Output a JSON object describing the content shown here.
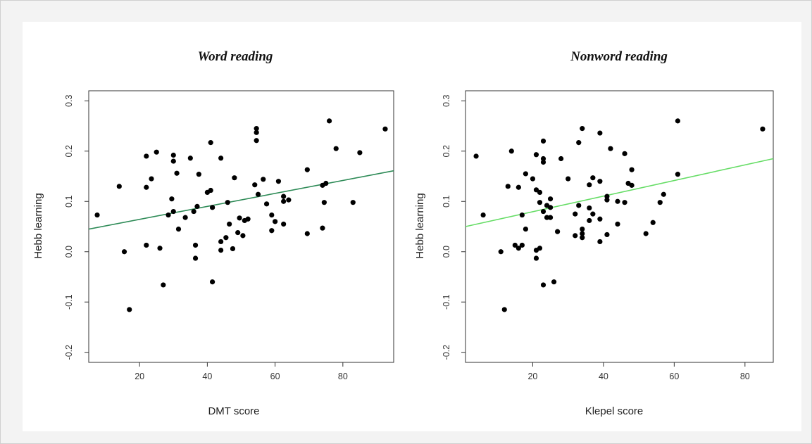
{
  "chart_data": [
    {
      "type": "scatter",
      "title": "Word reading",
      "xlabel": "DMT score",
      "ylabel": "Hebb learning",
      "xlim": [
        5,
        95
      ],
      "ylim": [
        -0.22,
        0.32
      ],
      "xticks": [
        20,
        40,
        60,
        80
      ],
      "yticks": [
        -0.2,
        -0.1,
        0.0,
        0.1,
        0.2,
        0.3
      ],
      "ytick_labels": [
        "-0.2",
        "-0.1",
        "0.0",
        "0.1",
        "0.2",
        "0.3"
      ],
      "grid": false,
      "fit_line": {
        "x": [
          5,
          95
        ],
        "y": [
          0.045,
          0.161
        ],
        "color": "#2e8b57"
      },
      "points": [
        [
          7.5,
          0.073
        ],
        [
          14,
          0.13
        ],
        [
          15.5,
          0.0
        ],
        [
          17,
          -0.115
        ],
        [
          22,
          0.19
        ],
        [
          22,
          0.128
        ],
        [
          22,
          0.013
        ],
        [
          23.5,
          0.145
        ],
        [
          25,
          0.198
        ],
        [
          26,
          0.007
        ],
        [
          27,
          -0.066
        ],
        [
          28.5,
          0.073
        ],
        [
          29.5,
          0.105
        ],
        [
          30,
          0.192
        ],
        [
          30,
          0.18
        ],
        [
          30,
          0.08
        ],
        [
          31,
          0.156
        ],
        [
          31.5,
          0.045
        ],
        [
          33.5,
          0.068
        ],
        [
          35,
          0.186
        ],
        [
          36,
          0.08
        ],
        [
          36.5,
          0.013
        ],
        [
          36.5,
          -0.013
        ],
        [
          37,
          0.09
        ],
        [
          37.5,
          0.154
        ],
        [
          40,
          0.118
        ],
        [
          41,
          0.217
        ],
        [
          41,
          0.122
        ],
        [
          41.5,
          0.088
        ],
        [
          41.5,
          -0.06
        ],
        [
          44,
          0.186
        ],
        [
          44,
          0.02
        ],
        [
          44,
          0.003
        ],
        [
          45.5,
          0.028
        ],
        [
          46,
          0.098
        ],
        [
          46.5,
          0.055
        ],
        [
          47.5,
          0.006
        ],
        [
          48,
          0.147
        ],
        [
          49,
          0.038
        ],
        [
          49.5,
          0.067
        ],
        [
          50.5,
          0.032
        ],
        [
          51,
          0.062
        ],
        [
          52,
          0.065
        ],
        [
          54,
          0.133
        ],
        [
          54.5,
          0.245
        ],
        [
          54.5,
          0.237
        ],
        [
          54.5,
          0.221
        ],
        [
          55,
          0.114
        ],
        [
          56.5,
          0.144
        ],
        [
          57.5,
          0.095
        ],
        [
          59,
          0.073
        ],
        [
          59,
          0.042
        ],
        [
          60,
          0.06
        ],
        [
          61,
          0.14
        ],
        [
          62.5,
          0.1
        ],
        [
          62.5,
          0.11
        ],
        [
          62.5,
          0.055
        ],
        [
          64,
          0.103
        ],
        [
          69.5,
          0.163
        ],
        [
          69.5,
          0.036
        ],
        [
          74,
          0.132
        ],
        [
          74,
          0.047
        ],
        [
          74.5,
          0.098
        ],
        [
          75,
          0.136
        ],
        [
          76,
          0.26
        ],
        [
          78,
          0.205
        ],
        [
          83,
          0.098
        ],
        [
          85,
          0.197
        ],
        [
          92.5,
          0.244
        ]
      ]
    },
    {
      "type": "scatter",
      "title": "Nonword reading",
      "xlabel": "Klepel score",
      "ylabel": "Hebb learning",
      "xlim": [
        1,
        88
      ],
      "ylim": [
        -0.22,
        0.32
      ],
      "xticks": [
        20,
        40,
        60,
        80
      ],
      "yticks": [
        -0.2,
        -0.1,
        0.0,
        0.1,
        0.2,
        0.3
      ],
      "ytick_labels": [
        "-0.2",
        "-0.1",
        "0.0",
        "0.1",
        "0.2",
        "0.3"
      ],
      "grid": false,
      "fit_line": {
        "x": [
          1,
          88
        ],
        "y": [
          0.05,
          0.185
        ],
        "color": "#66dd66"
      },
      "points": [
        [
          4,
          0.19
        ],
        [
          6,
          0.073
        ],
        [
          11,
          0.0
        ],
        [
          12,
          -0.115
        ],
        [
          13,
          0.13
        ],
        [
          14,
          0.2
        ],
        [
          15,
          0.013
        ],
        [
          16,
          0.128
        ],
        [
          16,
          0.007
        ],
        [
          17,
          0.073
        ],
        [
          17,
          0.013
        ],
        [
          18,
          0.155
        ],
        [
          18,
          0.045
        ],
        [
          20,
          0.145
        ],
        [
          21,
          0.193
        ],
        [
          21,
          0.123
        ],
        [
          21,
          0.003
        ],
        [
          21,
          -0.013
        ],
        [
          22,
          0.118
        ],
        [
          22,
          0.098
        ],
        [
          22,
          0.007
        ],
        [
          23,
          0.22
        ],
        [
          23,
          0.185
        ],
        [
          23,
          0.178
        ],
        [
          23,
          0.08
        ],
        [
          23,
          -0.066
        ],
        [
          24,
          0.092
        ],
        [
          24,
          0.068
        ],
        [
          25,
          0.105
        ],
        [
          25,
          0.088
        ],
        [
          25,
          0.068
        ],
        [
          26,
          -0.06
        ],
        [
          27,
          0.04
        ],
        [
          28,
          0.185
        ],
        [
          30,
          0.145
        ],
        [
          32,
          0.075
        ],
        [
          32,
          0.032
        ],
        [
          33,
          0.217
        ],
        [
          33,
          0.092
        ],
        [
          34,
          0.245
        ],
        [
          34,
          0.045
        ],
        [
          34,
          0.036
        ],
        [
          34,
          0.028
        ],
        [
          36,
          0.133
        ],
        [
          36,
          0.087
        ],
        [
          36,
          0.062
        ],
        [
          37,
          0.147
        ],
        [
          37,
          0.075
        ],
        [
          39,
          0.236
        ],
        [
          39,
          0.14
        ],
        [
          39,
          0.065
        ],
        [
          39,
          0.02
        ],
        [
          41,
          0.11
        ],
        [
          41,
          0.103
        ],
        [
          41,
          0.034
        ],
        [
          42,
          0.205
        ],
        [
          44,
          0.1
        ],
        [
          44,
          0.055
        ],
        [
          46,
          0.195
        ],
        [
          46,
          0.098
        ],
        [
          47,
          0.136
        ],
        [
          48,
          0.163
        ],
        [
          48,
          0.132
        ],
        [
          52,
          0.036
        ],
        [
          54,
          0.058
        ],
        [
          56,
          0.098
        ],
        [
          57,
          0.114
        ],
        [
          61,
          0.26
        ],
        [
          61,
          0.154
        ],
        [
          85,
          0.244
        ]
      ]
    }
  ]
}
